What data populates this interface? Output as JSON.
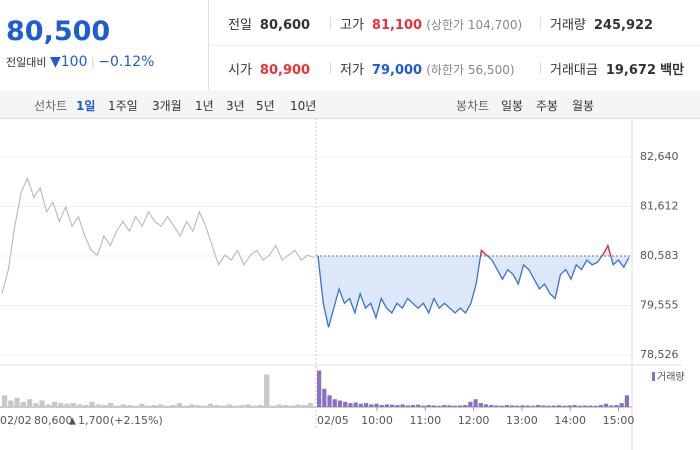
{
  "quote": {
    "price": "80,500",
    "change_label": "전일대비",
    "change": "100",
    "change_pct": "−0.12%"
  },
  "stats": [
    {
      "label": "전일",
      "value": "80,600"
    },
    {
      "label": "고가",
      "value": "81,100",
      "note": "(상한가 104,700)"
    },
    {
      "label": "거래량",
      "value": "245,922"
    },
    {
      "label": "시가",
      "value": "80,900"
    },
    {
      "label": "저가",
      "value": "79,000",
      "note": "(하한가 56,500)"
    },
    {
      "label": "거래대금",
      "value": "19,672",
      "unit": "백만"
    }
  ],
  "tabs": {
    "line_label": "선차트",
    "line": [
      "1일",
      "1주일",
      "3개월",
      "1년",
      "3년",
      "5년",
      "10년"
    ],
    "candle_label": "봉차트",
    "candle": [
      "일봉",
      "주봉",
      "월봉"
    ]
  },
  "chart": {
    "type": "line",
    "ylim": [
      78318,
      83450
    ],
    "yticks": [
      {
        "value": 82640,
        "label": "82,640"
      },
      {
        "value": 81612,
        "label": "81,612"
      },
      {
        "value": 80583,
        "label": "80,583"
      },
      {
        "value": 79555,
        "label": "79,555"
      },
      {
        "value": 78526,
        "label": "78,526"
      }
    ],
    "reference": 80583,
    "previous": {
      "date": "02/02",
      "close": "80,600",
      "change": "1,700",
      "change_pct": "(+2.15%)",
      "color": "#bdbdbd",
      "values": [
        79800,
        80300,
        81200,
        81900,
        82200,
        81800,
        82000,
        81500,
        81700,
        81300,
        81600,
        81200,
        81400,
        81000,
        80700,
        80600,
        81000,
        80800,
        81100,
        81300,
        81100,
        81400,
        81200,
        81500,
        81300,
        81200,
        81400,
        81200,
        81000,
        81300,
        81100,
        81500,
        81200,
        80800,
        80400,
        80600,
        80500,
        80700,
        80400,
        80600,
        80700,
        80500,
        80600,
        80800,
        80500,
        80600,
        80700,
        80500,
        80600,
        80550
      ],
      "volume": [
        9000,
        5000,
        7000,
        4000,
        6000,
        3000,
        5000,
        2000,
        4000,
        3000,
        2500,
        3000,
        2000,
        1500,
        4000,
        2000,
        1500,
        3000,
        1000,
        2000,
        1500,
        1000,
        2500,
        1000,
        1500,
        2000,
        1000,
        1500,
        3000,
        1000,
        2000,
        1500,
        1000,
        2500,
        1500,
        1000,
        2000,
        1000,
        1500,
        2000,
        1000,
        1500,
        25000,
        1000,
        2000,
        1500,
        1000,
        2000,
        1500,
        3000
      ]
    },
    "today": {
      "date": "02/05",
      "color": "#3a6fd8",
      "up_color": "#e8333a",
      "fill": "#dce8f8",
      "values": [
        80583,
        79600,
        79100,
        79500,
        79900,
        79600,
        79700,
        79400,
        79800,
        79500,
        79600,
        79300,
        79700,
        79500,
        79400,
        79600,
        79500,
        79700,
        79600,
        79500,
        79600,
        79400,
        79700,
        79500,
        79600,
        79500,
        79400,
        79500,
        79400,
        79600,
        80000,
        80700,
        80600,
        80500,
        80300,
        80100,
        80300,
        80200,
        80000,
        80400,
        80300,
        80100,
        79900,
        80000,
        79800,
        79700,
        80200,
        80300,
        80100,
        80400,
        80300,
        80500,
        80400,
        80450,
        80600,
        80800,
        80400,
        80500,
        80350,
        80550
      ],
      "volume": [
        28000,
        14000,
        9000,
        6000,
        5000,
        4000,
        3000,
        3500,
        2500,
        3000,
        2000,
        2500,
        1500,
        2000,
        1800,
        1500,
        2000,
        1200,
        1500,
        1800,
        1000,
        1500,
        1200,
        1000,
        1500,
        1300,
        1000,
        1200,
        1500,
        4000,
        6000,
        3000,
        2000,
        1500,
        1200,
        1000,
        1500,
        1200,
        1000,
        1300,
        1100,
        1000,
        1500,
        1200,
        1000,
        1100,
        1300,
        1000,
        1200,
        1500,
        1000,
        1200,
        1100,
        1000,
        1500,
        2500,
        1200,
        1500,
        3000,
        9000
      ],
      "color_volume": "#8a6fc4"
    },
    "times": [
      "10:00",
      "11:00",
      "12:00",
      "13:00",
      "14:00",
      "15:00"
    ],
    "volume_label": "거래량",
    "volume_lim": [
      0,
      30000
    ]
  }
}
